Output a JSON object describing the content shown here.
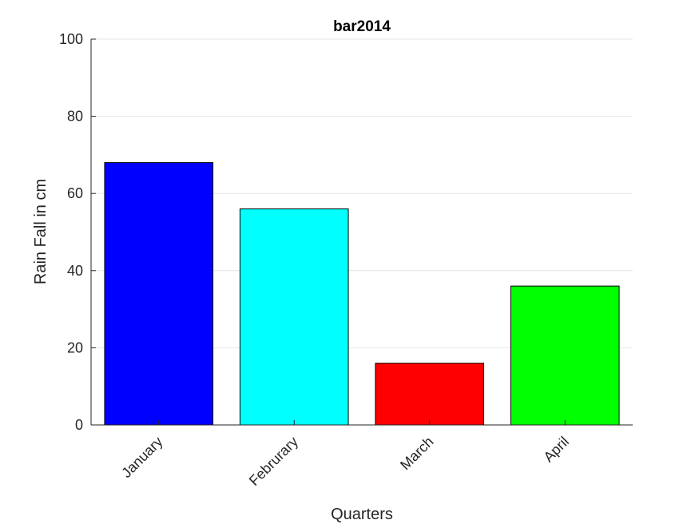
{
  "chart_data": {
    "type": "bar",
    "title": "bar2014",
    "xlabel": "Quarters",
    "ylabel": "Rain Fall in cm",
    "categories": [
      "January",
      "Februrary",
      "March",
      "April"
    ],
    "values": [
      68,
      56,
      16,
      36
    ],
    "bar_colors": [
      "#0000ff",
      "#00ffff",
      "#ff0000",
      "#00ff00"
    ],
    "ylim": [
      0,
      100
    ],
    "yticks": [
      "0",
      "20",
      "40",
      "60",
      "80",
      "100"
    ],
    "grid": "horizontal",
    "legend": "none"
  }
}
